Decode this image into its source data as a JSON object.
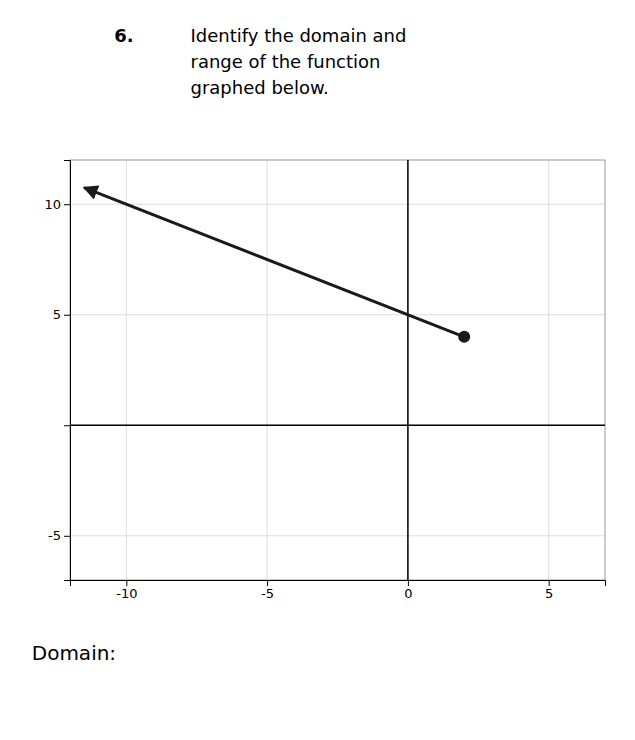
{
  "chart_data": {
    "type": "line",
    "title": "Identify the domain and\nrange of the function\ngraphed below.",
    "annotations": [
      "6.",
      "Domain:"
    ],
    "xlim": [
      -12,
      7
    ],
    "ylim": [
      -7,
      12
    ],
    "xticks": [
      -10,
      -5,
      0,
      5
    ],
    "yticks": [
      -5,
      {
        "value": 0,
        "label": null
      },
      5,
      10
    ],
    "grid": true,
    "series": [
      {
        "x": [
          2,
          -11.5
        ],
        "values": [
          4,
          10.75
        ],
        "color": "#1a1a1a"
      }
    ]
  }
}
